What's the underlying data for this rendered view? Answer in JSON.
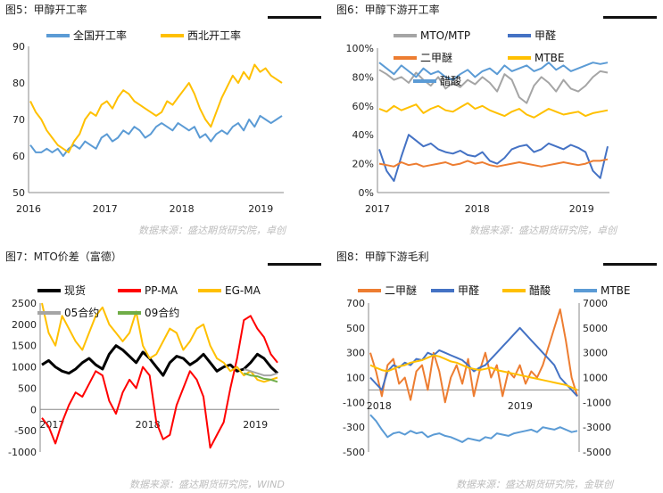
{
  "panels": [
    {
      "title": "图5：甲醇开工率",
      "source": "数据来源：盛达期货研究院，卓创",
      "chart_data": {
        "type": "line",
        "x_ticks": [
          "2016",
          "2017",
          "2018",
          "2019"
        ],
        "ylim": [
          50,
          90
        ],
        "y_ticks": [
          "50",
          "60",
          "70",
          "80",
          "90"
        ],
        "series": [
          {
            "name": "全国开工率",
            "color": "#5B9BD5",
            "values": [
              63,
              61,
              61,
              62,
              61,
              62,
              60,
              62,
              63,
              62,
              64,
              63,
              62,
              65,
              66,
              64,
              65,
              67,
              66,
              68,
              67,
              65,
              66,
              68,
              69,
              68,
              67,
              69,
              68,
              67,
              68,
              65,
              66,
              64,
              66,
              67,
              66,
              68,
              69,
              67,
              70,
              68,
              71,
              70,
              69,
              70,
              71
            ]
          },
          {
            "name": "西北开工率",
            "color": "#FFC000",
            "values": [
              75,
              72,
              70,
              67,
              65,
              63,
              62,
              61,
              64,
              66,
              70,
              72,
              71,
              74,
              75,
              73,
              76,
              78,
              77,
              75,
              74,
              73,
              72,
              71,
              72,
              75,
              74,
              76,
              78,
              80,
              77,
              73,
              70,
              68,
              72,
              76,
              79,
              82,
              80,
              83,
              81,
              85,
              83,
              84,
              82,
              81,
              80
            ]
          }
        ]
      }
    },
    {
      "title": "图6：甲醇下游开工率",
      "source": "数据来源：盛达期货研究院，卓创",
      "chart_data": {
        "type": "line",
        "x_ticks": [
          "2017",
          "2018",
          "2019"
        ],
        "ylim": [
          0,
          100
        ],
        "y_ticks": [
          "0%",
          "20%",
          "40%",
          "60%",
          "80%",
          "100%"
        ],
        "series": [
          {
            "name": "MTO/MTP",
            "color": "#A5A5A5",
            "values": [
              85,
              82,
              78,
              80,
              76,
              83,
              78,
              74,
              80,
              72,
              76,
              73,
              78,
              75,
              80,
              76,
              70,
              82,
              78,
              66,
              62,
              74,
              80,
              76,
              70,
              78,
              72,
              70,
              74,
              80,
              84,
              83
            ]
          },
          {
            "name": "甲醛",
            "color": "#4472C4",
            "values": [
              30,
              15,
              8,
              25,
              40,
              36,
              32,
              34,
              30,
              28,
              27,
              29,
              26,
              25,
              28,
              22,
              20,
              24,
              30,
              32,
              33,
              28,
              30,
              34,
              32,
              30,
              33,
              31,
              28,
              15,
              10,
              32
            ]
          },
          {
            "name": "二甲醚",
            "color": "#ED7D31",
            "values": [
              20,
              19,
              18,
              21,
              19,
              20,
              18,
              19,
              20,
              21,
              19,
              20,
              22,
              20,
              21,
              19,
              18,
              19,
              20,
              21,
              20,
              19,
              18,
              19,
              20,
              21,
              20,
              19,
              20,
              22,
              22,
              23
            ]
          },
          {
            "name": "MTBE",
            "color": "#FFC000",
            "values": [
              58,
              56,
              60,
              57,
              59,
              61,
              55,
              58,
              60,
              57,
              56,
              59,
              62,
              58,
              60,
              57,
              55,
              53,
              56,
              58,
              54,
              52,
              55,
              58,
              56,
              54,
              55,
              56,
              53,
              55,
              56,
              57
            ]
          },
          {
            "name": "醋酸",
            "color": "#5B9BD5",
            "values": [
              90,
              86,
              82,
              88,
              84,
              80,
              86,
              82,
              84,
              80,
              78,
              82,
              85,
              80,
              84,
              86,
              82,
              88,
              84,
              86,
              88,
              84,
              86,
              90,
              85,
              88,
              84,
              86,
              88,
              90,
              89,
              90
            ]
          }
        ]
      }
    },
    {
      "title": "图7：MTO价差（富德）",
      "source": "数据来源：盛达期货研究院，WIND",
      "chart_data": {
        "type": "line",
        "x_ticks": [
          "2017",
          "2018",
          "2019"
        ],
        "ylim": [
          -1000,
          2500
        ],
        "y_ticks": [
          "-1000",
          "-500",
          "0",
          "500",
          "1000",
          "1500",
          "2000",
          "2500"
        ],
        "series": [
          {
            "name": "现货",
            "color": "#000000",
            "values": [
              1050,
              1150,
              1000,
              900,
              850,
              950,
              1100,
              1200,
              1050,
              950,
              1300,
              1500,
              1400,
              1250,
              1100,
              1350,
              1200,
              1000,
              800,
              1100,
              1250,
              1200,
              1050,
              1150,
              1300,
              1100,
              900,
              1000,
              1050,
              900,
              950,
              1100,
              1300,
              1200,
              1000,
              850
            ]
          },
          {
            "name": "PP-MA",
            "color": "#FF0000",
            "values": [
              -200,
              -400,
              -800,
              -300,
              100,
              400,
              300,
              600,
              900,
              800,
              200,
              -100,
              400,
              700,
              500,
              1000,
              800,
              -300,
              -700,
              -600,
              100,
              500,
              900,
              700,
              300,
              -900,
              -600,
              -300,
              500,
              1200,
              2100,
              2200,
              1900,
              1700,
              1300,
              1100
            ]
          },
          {
            "name": "EG-MA",
            "color": "#FFC000",
            "values": [
              2500,
              1800,
              1500,
              2200,
              1900,
              1600,
              1400,
              1800,
              2200,
              2400,
              2000,
              1800,
              1600,
              1800,
              2300,
              1500,
              1200,
              1300,
              1600,
              1900,
              1800,
              1400,
              1600,
              1900,
              2000,
              1500,
              1200,
              1100,
              900,
              1000,
              800,
              900,
              700,
              650,
              700,
              750
            ]
          },
          {
            "name": "05合约",
            "color": "#A5A5A5",
            "values": [
              null,
              null,
              null,
              null,
              null,
              null,
              null,
              null,
              null,
              null,
              null,
              null,
              null,
              null,
              null,
              null,
              null,
              null,
              null,
              null,
              null,
              null,
              null,
              null,
              null,
              null,
              null,
              null,
              null,
              null,
              950,
              900,
              850,
              800,
              800,
              850
            ]
          },
          {
            "name": "09合约",
            "color": "#70AD47",
            "values": [
              null,
              null,
              null,
              null,
              null,
              null,
              null,
              null,
              null,
              null,
              null,
              null,
              null,
              null,
              null,
              null,
              null,
              null,
              null,
              null,
              null,
              null,
              null,
              null,
              null,
              null,
              null,
              null,
              null,
              null,
              850,
              800,
              780,
              720,
              700,
              650
            ]
          }
        ]
      }
    },
    {
      "title": "图8：甲醇下游毛利",
      "source": "数据来源：盛达期货研究院，金联创",
      "chart_data": {
        "type": "line",
        "x_ticks": [
          "2018",
          "2019"
        ],
        "ylim": [
          -500,
          700
        ],
        "y_ticks": [
          "-500",
          "-300",
          "-100",
          "100",
          "300",
          "500",
          "700"
        ],
        "ylim2": [
          -5000,
          7000
        ],
        "y_ticks2": [
          "-5000",
          "-3000",
          "-1000",
          "1000",
          "3000",
          "5000",
          "7000"
        ],
        "series": [
          {
            "name": "二甲醚",
            "color": "#ED7D31",
            "axis": "left",
            "values": [
              300,
              150,
              -50,
              200,
              250,
              50,
              100,
              -80,
              150,
              200,
              0,
              300,
              150,
              -100,
              100,
              200,
              50,
              250,
              -50,
              150,
              300,
              100,
              200,
              -50,
              150,
              100,
              200,
              50,
              150,
              100,
              200,
              350,
              500,
              650,
              400,
              100,
              -50
            ]
          },
          {
            "name": "甲醛",
            "color": "#4472C4",
            "axis": "left",
            "values": [
              100,
              50,
              0,
              150,
              200,
              180,
              220,
              200,
              250,
              240,
              300,
              280,
              320,
              300,
              280,
              260,
              240,
              200,
              150,
              180,
              200,
              250,
              300,
              350,
              400,
              450,
              500,
              450,
              400,
              350,
              300,
              250,
              200,
              100,
              50,
              0,
              -50
            ]
          },
          {
            "name": "醋酸",
            "color": "#FFC000",
            "axis": "right",
            "values": [
              2000,
              1800,
              1600,
              1500,
              1700,
              1900,
              2000,
              2200,
              2300,
              2400,
              2600,
              2800,
              2700,
              2500,
              2300,
              2200,
              2000,
              1800,
              1700,
              1600,
              1700,
              1800,
              1600,
              1500,
              1400,
              1300,
              1200,
              1100,
              1000,
              900,
              800,
              700,
              600,
              500,
              400,
              200,
              0
            ]
          },
          {
            "name": "MTBE",
            "color": "#5B9BD5",
            "axis": "right",
            "values": [
              -2000,
              -2500,
              -3200,
              -3800,
              -3500,
              -3400,
              -3600,
              -3300,
              -3500,
              -3400,
              -3800,
              -3600,
              -3500,
              -3700,
              -3800,
              -4000,
              -4200,
              -3900,
              -4000,
              -4100,
              -3800,
              -3900,
              -3500,
              -3600,
              -3700,
              -3500,
              -3400,
              -3300,
              -3200,
              -3400,
              -3000,
              -3100,
              -3200,
              -3000,
              -3200,
              -3400,
              -3300
            ]
          }
        ]
      }
    }
  ]
}
